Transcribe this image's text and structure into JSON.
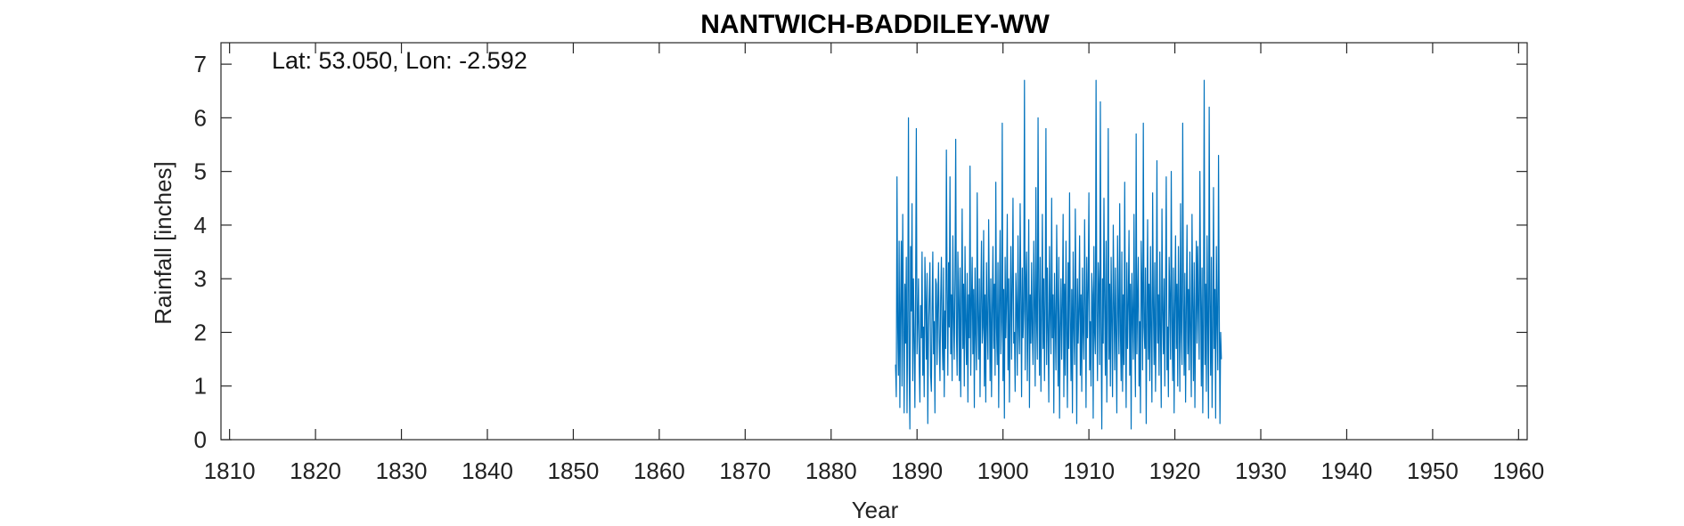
{
  "chart_data": {
    "type": "line",
    "title": "NANTWICH-BADDILEY-WW",
    "annotation": "Lat: 53.050, Lon: -2.592",
    "xlabel": "Year",
    "ylabel": "Rainfall [inches]",
    "xlim": [
      1809,
      1961
    ],
    "ylim": [
      0,
      7.4
    ],
    "xticks": [
      1810,
      1820,
      1830,
      1840,
      1850,
      1860,
      1870,
      1880,
      1890,
      1900,
      1910,
      1920,
      1930,
      1940,
      1950,
      1960
    ],
    "yticks": [
      0,
      1,
      2,
      3,
      4,
      5,
      6,
      7
    ],
    "grid": false,
    "legend": "none",
    "series_color": "#0072BD",
    "series": [
      {
        "start_year": 1887.5,
        "step_years": 0.08333,
        "values": [
          1.4,
          0.8,
          4.9,
          2.1,
          1.2,
          3.7,
          0.6,
          2.5,
          3.7,
          1.0,
          4.2,
          2.3,
          0.5,
          2.9,
          1.8,
          3.4,
          0.5,
          2.2,
          6.0,
          1.3,
          0.2,
          3.6,
          2.4,
          4.4,
          1.1,
          3.0,
          1.9,
          0.6,
          2.8,
          5.8,
          1.6,
          2.2,
          3.0,
          1.4,
          0.7,
          2.5,
          1.9,
          3.5,
          1.2,
          2.1,
          0.8,
          3.4,
          2.6,
          1.5,
          3.1,
          0.3,
          2.0,
          2.7,
          3.3,
          1.2,
          0.9,
          2.4,
          3.5,
          1.6,
          2.2,
          0.5,
          3.0,
          2.9,
          1.4,
          2.5,
          3.3,
          1.8,
          1.1,
          2.6,
          3.4,
          2.0,
          1.3,
          3.2,
          0.8,
          2.4,
          1.7,
          5.4,
          2.8,
          1.2,
          3.3,
          2.1,
          4.9,
          1.6,
          2.7,
          1.1,
          3.8,
          2.3,
          1.5,
          3.0,
          5.6,
          2.0,
          1.2,
          3.5,
          2.6,
          1.1,
          3.2,
          0.8,
          2.4,
          4.3,
          1.7,
          2.9,
          1.0,
          3.6,
          2.2,
          1.4,
          3.1,
          0.7,
          2.7,
          1.9,
          5.1,
          1.2,
          2.5,
          3.4,
          1.6,
          2.8,
          0.6,
          3.2,
          2.0,
          1.3,
          4.6,
          2.3,
          1.5,
          3.0,
          0.8,
          2.6,
          3.7,
          1.8,
          2.1,
          3.9,
          1.0,
          2.7,
          0.7,
          3.3,
          2.2,
          1.5,
          4.1,
          2.6,
          1.1,
          3.0,
          0.8,
          2.4,
          3.6,
          1.7,
          2.9,
          1.2,
          4.8,
          2.1,
          1.4,
          3.3,
          0.6,
          2.5,
          3.9,
          1.6,
          2.2,
          5.9,
          1.1,
          2.8,
          0.4,
          3.4,
          1.9,
          2.6,
          4.2,
          1.3,
          3.0,
          0.7,
          2.3,
          3.6,
          1.5,
          2.8,
          4.5,
          1.8,
          2.0,
          0.9,
          3.1,
          2.5,
          1.2,
          3.8,
          2.1,
          1.6,
          4.4,
          2.7,
          0.8,
          3.2,
          1.9,
          2.4,
          6.7,
          1.3,
          2.9,
          3.5,
          1.1,
          2.2,
          4.1,
          0.6,
          2.7,
          1.8,
          3.3,
          2.0,
          1.4,
          3.7,
          2.5,
          1.0,
          4.7,
          2.2,
          1.5,
          6.0,
          2.8,
          1.2,
          3.4,
          0.9,
          2.3,
          4.2,
          1.7,
          3.0,
          1.1,
          2.6,
          5.8,
          1.4,
          3.2,
          2.0,
          0.7,
          3.6,
          2.4,
          1.6,
          4.5,
          1.9,
          2.7,
          0.5,
          3.1,
          2.2,
          1.3,
          4.0,
          2.6,
          1.0,
          3.4,
          0.4,
          2.1,
          3.0,
          1.5,
          2.5,
          4.2,
          0.8,
          2.9,
          1.2,
          3.7,
          2.0,
          0.6,
          3.3,
          1.7,
          4.6,
          2.3,
          1.1,
          2.8,
          0.5,
          3.5,
          2.1,
          1.4,
          4.3,
          2.6,
          0.3,
          3.0,
          1.8,
          2.4,
          3.8,
          1.2,
          2.7,
          0.9,
          3.2,
          2.0,
          1.5,
          4.1,
          2.5,
          0.6,
          3.4,
          1.9,
          2.8,
          4.6,
          1.3,
          2.2,
          1.0,
          3.1,
          2.7,
          0.4,
          3.6,
          2.0,
          1.6,
          6.7,
          2.4,
          1.1,
          3.3,
          2.8,
          1.4,
          6.3,
          2.1,
          0.2,
          3.0,
          1.8,
          4.5,
          2.5,
          1.2,
          3.7,
          0.7,
          2.3,
          5.8,
          1.5,
          2.9,
          1.0,
          3.4,
          2.2,
          0.8,
          4.0,
          2.6,
          1.3,
          3.2,
          1.9,
          0.5,
          3.8,
          2.4,
          1.6,
          4.4,
          2.0,
          1.1,
          3.5,
          0.9,
          2.7,
          1.4,
          4.8,
          2.1,
          0.6,
          3.3,
          1.7,
          2.5,
          3.9,
          1.2,
          2.9,
          0.2,
          3.1,
          2.3,
          1.5,
          4.2,
          2.0,
          0.8,
          5.7,
          1.6,
          2.6,
          3.4,
          1.0,
          2.2,
          0.5,
          3.7,
          2.8,
          1.3,
          5.9,
          2.1,
          1.7,
          3.2,
          0.3,
          2.4,
          4.1,
          1.5,
          2.9,
          1.1,
          3.6,
          2.0,
          0.7,
          4.6,
          2.5,
          1.4,
          3.3,
          0.9,
          2.2,
          5.2,
          1.8,
          2.7,
          1.2,
          3.5,
          2.0,
          0.6,
          4.3,
          2.4,
          1.6,
          3.0,
          1.0,
          2.8,
          4.9,
          1.3,
          2.1,
          0.8,
          3.4,
          2.6,
          1.5,
          5.0,
          2.2,
          1.1,
          3.2,
          0.5,
          2.5,
          3.8,
          1.7,
          2.9,
          1.0,
          3.6,
          2.3,
          0.9,
          4.4,
          2.0,
          1.4,
          5.9,
          2.6,
          1.2,
          3.1,
          0.7,
          2.4,
          4.0,
          1.6,
          2.8,
          1.3,
          3.5,
          2.0,
          0.8,
          4.2,
          2.5,
          1.1,
          3.3,
          0.6,
          2.2,
          3.7,
          1.8,
          3.6,
          2.4,
          1.5,
          5.0,
          2.7,
          1.0,
          3.2,
          0.5,
          2.3,
          6.7,
          1.4,
          2.9,
          0.9,
          3.8,
          2.1,
          0.4,
          6.2,
          2.6,
          1.2,
          3.4,
          0.6,
          2.0,
          4.7,
          1.7,
          2.8,
          0.4,
          3.6,
          2.2,
          1.3,
          5.3,
          2.5,
          0.3,
          2.0,
          1.5
        ]
      }
    ]
  }
}
